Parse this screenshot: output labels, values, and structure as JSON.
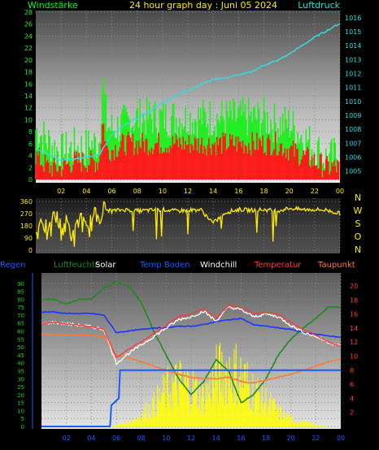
{
  "title": "24 hour graph day : Juni 05 2024",
  "colors": {
    "wind": "#22ee22",
    "gust": "#ff1a1a",
    "pressure": "#33dddd",
    "direction": "#ffee00",
    "humidity": "#1f8a1f",
    "regen": "#1a5cff",
    "solar": "#ffff00",
    "temp_boden": "#1f35ff",
    "windchill": "#ffffff",
    "temperatur": "#ff3b3b",
    "taupunkt": "#ff7a3a"
  },
  "x_ticks": [
    "02",
    "04",
    "06",
    "08",
    "10",
    "12",
    "14",
    "16",
    "18",
    "20",
    "22",
    "00"
  ],
  "chart_data": [
    {
      "type": "line",
      "name": "wind-pressure",
      "left_label": "Windstärke",
      "right_label": "Luftdruck",
      "left_ticks": [
        "0",
        "2",
        "4",
        "6",
        "8",
        "10",
        "12",
        "14",
        "16",
        "18",
        "20",
        "22",
        "24",
        "26",
        "28"
      ],
      "right_ticks": [
        "1005",
        "1006",
        "1007",
        "1008",
        "1009",
        "1010",
        "1011",
        "1012",
        "1013",
        "1014",
        "1015",
        "1016"
      ],
      "ylim_left": [
        0,
        28
      ],
      "ylim_right": [
        1004.4,
        1016.4
      ],
      "series": [
        {
          "name": "Windstärke",
          "hours": [
            0,
            1,
            2,
            3,
            4,
            5,
            5.3,
            5.6,
            6,
            7,
            8,
            9,
            10,
            11,
            12,
            13,
            14,
            15,
            16,
            17,
            18,
            19,
            20,
            21,
            22,
            23,
            24
          ],
          "values": [
            8,
            6,
            4,
            5,
            5,
            6,
            17,
            9,
            8,
            9,
            10,
            10,
            10,
            10,
            10,
            10,
            10,
            10,
            10,
            10,
            10,
            9,
            9,
            7,
            5,
            3,
            4
          ]
        },
        {
          "name": "Böen",
          "hours": [
            0,
            1,
            2,
            3,
            4,
            5,
            5.3,
            5.6,
            6,
            7,
            8,
            9,
            10,
            11,
            12,
            13,
            14,
            15,
            16,
            17,
            18,
            19,
            20,
            21,
            22,
            23,
            24
          ],
          "values": [
            4,
            2,
            2,
            3,
            3,
            3,
            10,
            5,
            5,
            6,
            6,
            6,
            6,
            6,
            6,
            6,
            6,
            6,
            6,
            6,
            6,
            6,
            5,
            4,
            3,
            2,
            2
          ]
        },
        {
          "name": "Luftdruck",
          "hours": [
            0,
            1,
            2,
            3,
            4,
            5,
            6,
            7,
            8,
            9,
            10,
            11,
            12,
            13,
            14,
            15,
            16,
            17,
            18,
            19,
            20,
            21,
            22,
            23,
            24
          ],
          "values": [
            1006.6,
            1006.2,
            1005.8,
            1005.9,
            1006.0,
            1006.2,
            1007.6,
            1008.3,
            1008.8,
            1009.3,
            1009.9,
            1010.4,
            1010.8,
            1011.2,
            1011.6,
            1011.7,
            1011.9,
            1012.1,
            1012.6,
            1012.9,
            1013.4,
            1014.0,
            1014.6,
            1015.1,
            1015.6
          ]
        }
      ]
    },
    {
      "type": "line",
      "name": "wind-direction",
      "left_ticks": [
        "0",
        "90",
        "180",
        "270",
        "360"
      ],
      "right_ticks": [
        "N",
        "W",
        "S",
        "O",
        "N"
      ],
      "ylim": [
        0,
        360
      ],
      "series": [
        {
          "name": "Windrichtung",
          "hours": [
            0,
            0.5,
            1,
            1.5,
            2,
            2.5,
            3,
            3.5,
            4,
            4.5,
            5,
            5.5,
            6,
            7,
            8,
            9,
            10,
            11,
            12,
            13,
            14,
            15,
            16,
            17,
            18,
            19,
            20,
            21,
            22,
            23,
            24
          ],
          "values": [
            110,
            250,
            90,
            270,
            150,
            200,
            80,
            260,
            120,
            230,
            270,
            300,
            290,
            300,
            290,
            295,
            300,
            290,
            295,
            300,
            200,
            280,
            300,
            295,
            300,
            290,
            310,
            300,
            300,
            295,
            270
          ]
        }
      ]
    },
    {
      "type": "line",
      "name": "climate",
      "legend": [
        "Regen",
        "Luftfeuchte",
        "Solar",
        "Temp Boden",
        "Windchill",
        "Temperatur",
        "Taupunkt"
      ],
      "left_ticks": [
        "0",
        "5",
        "10",
        "15",
        "20",
        "25",
        "30",
        "35",
        "40",
        "45",
        "50",
        "55",
        "60",
        "65",
        "70",
        "75",
        "80",
        "85",
        "90"
      ],
      "right_ticks": [
        "2",
        "4",
        "6",
        "8",
        "10",
        "12",
        "14",
        "16",
        "18",
        "20"
      ],
      "ylim_left": [
        0,
        95
      ],
      "ylim_right": [
        0,
        21.5
      ],
      "series": [
        {
          "name": "Luftfeuchte",
          "hours": [
            0,
            1,
            2,
            3,
            4,
            5,
            6,
            7,
            8,
            9,
            10,
            11,
            12,
            13,
            14,
            15,
            16,
            17,
            18,
            19,
            20,
            21,
            22,
            23,
            24
          ],
          "values": [
            80,
            80,
            77,
            80,
            80,
            87,
            91,
            88,
            78,
            60,
            45,
            30,
            20,
            28,
            42,
            35,
            15,
            20,
            30,
            45,
            55,
            62,
            68,
            75,
            75
          ]
        },
        {
          "name": "Temp Boden",
          "hours": [
            0,
            1,
            2,
            3,
            4,
            5,
            6,
            7,
            8,
            9,
            10,
            11,
            12,
            13,
            14,
            15,
            16,
            17,
            18,
            19,
            20,
            21,
            22,
            23,
            24
          ],
          "values": [
            72,
            72,
            71,
            71,
            71,
            70,
            59,
            60,
            61,
            62,
            62,
            63,
            63,
            64,
            66,
            67,
            68,
            64,
            63,
            62,
            61,
            59,
            58,
            57,
            56
          ]
        },
        {
          "name": "Temperatur",
          "hours": [
            0,
            1,
            2,
            3,
            4,
            5,
            6,
            7,
            8,
            9,
            10,
            11,
            12,
            13,
            14,
            15,
            16,
            17,
            18,
            19,
            20,
            21,
            22,
            23,
            24
          ],
          "values": [
            14.6,
            14.8,
            14.6,
            14.4,
            14.2,
            13.8,
            9.8,
            11.0,
            12.0,
            13.2,
            14.4,
            15.6,
            16.0,
            16.8,
            15.4,
            17.2,
            17.0,
            16.0,
            16.2,
            16.0,
            14.8,
            13.8,
            13.0,
            12.0,
            11.4
          ]
        },
        {
          "name": "Windchill",
          "hours": [
            0,
            1,
            2,
            3,
            4,
            5,
            6,
            7,
            8,
            9,
            10,
            11,
            12,
            13,
            14,
            15,
            16,
            17,
            18,
            19,
            20,
            21,
            22,
            23,
            24
          ],
          "values": [
            14.6,
            14.8,
            14.6,
            14.4,
            14.2,
            13.8,
            9.0,
            10.4,
            11.6,
            12.8,
            14.0,
            15.2,
            15.6,
            16.4,
            15.0,
            17.0,
            16.6,
            15.6,
            16.0,
            15.6,
            14.4,
            13.4,
            12.8,
            12.0,
            11.4
          ]
        },
        {
          "name": "Taupunkt",
          "hours": [
            0,
            1,
            2,
            3,
            4,
            5,
            6,
            7,
            8,
            9,
            10,
            11,
            12,
            13,
            14,
            15,
            16,
            17,
            18,
            19,
            20,
            21,
            22,
            23,
            24
          ],
          "values": [
            13.2,
            13.0,
            13.0,
            13.0,
            13.0,
            12.8,
            10.0,
            9.8,
            9.2,
            8.6,
            8.0,
            7.4,
            7.0,
            6.8,
            6.8,
            7.0,
            6.4,
            6.2,
            6.6,
            7.0,
            7.4,
            8.0,
            8.6,
            9.2,
            9.6
          ]
        },
        {
          "name": "Regen",
          "hours": [
            0,
            5.5,
            5.6,
            6.2,
            6.3,
            24
          ],
          "values": [
            0,
            0,
            3,
            4,
            8,
            8
          ]
        },
        {
          "name": "Solar",
          "hours": [
            0,
            5,
            6,
            7,
            8,
            9,
            10,
            11,
            12,
            13,
            14,
            15,
            16,
            17,
            18,
            19,
            20,
            21,
            22,
            23,
            24
          ],
          "values": [
            0,
            0,
            1,
            3,
            8,
            15,
            25,
            30,
            28,
            20,
            35,
            40,
            35,
            25,
            18,
            10,
            5,
            3,
            1,
            0,
            0
          ]
        }
      ]
    }
  ]
}
